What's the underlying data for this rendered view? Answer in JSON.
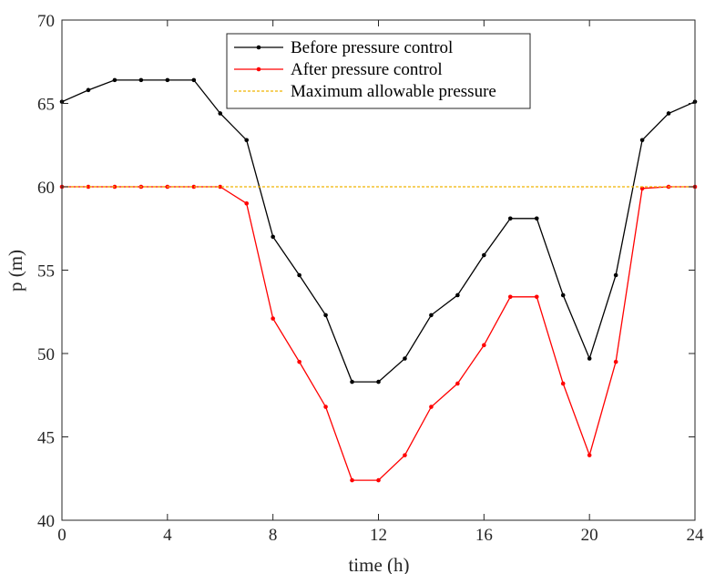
{
  "chart_data": {
    "type": "line",
    "xlabel": "time (h)",
    "ylabel": "p (m)",
    "xlim": [
      0,
      24
    ],
    "ylim": [
      40,
      70
    ],
    "xticks": [
      0,
      4,
      8,
      12,
      16,
      20,
      24
    ],
    "yticks": [
      40,
      45,
      50,
      55,
      60,
      65,
      70
    ],
    "grid": false,
    "legend_position": "top-center",
    "x": [
      0,
      1,
      2,
      3,
      4,
      5,
      6,
      7,
      8,
      9,
      10,
      11,
      12,
      13,
      14,
      15,
      16,
      17,
      18,
      19,
      20,
      21,
      22,
      23,
      24
    ],
    "series": [
      {
        "name": "Before pressure control",
        "color": "#000000",
        "markers": true,
        "dashed": false,
        "values": [
          65.1,
          65.8,
          66.4,
          66.4,
          66.4,
          66.4,
          64.4,
          62.8,
          57.0,
          54.7,
          52.3,
          48.3,
          48.3,
          49.7,
          52.3,
          53.5,
          55.9,
          58.1,
          58.1,
          53.5,
          49.7,
          54.7,
          62.8,
          64.4,
          65.1
        ]
      },
      {
        "name": "After pressure control",
        "color": "#ff0000",
        "markers": true,
        "dashed": false,
        "values": [
          60.0,
          60.0,
          60.0,
          60.0,
          60.0,
          60.0,
          60.0,
          59.0,
          52.1,
          49.5,
          46.8,
          42.4,
          42.4,
          43.9,
          46.8,
          48.2,
          50.5,
          53.4,
          53.4,
          48.2,
          43.9,
          49.5,
          59.9,
          60.0,
          60.0
        ]
      },
      {
        "name": "Maximum allowable pressure",
        "color": "#f0b400",
        "markers": false,
        "dashed": true,
        "values": [
          60,
          60,
          60,
          60,
          60,
          60,
          60,
          60,
          60,
          60,
          60,
          60,
          60,
          60,
          60,
          60,
          60,
          60,
          60,
          60,
          60,
          60,
          60,
          60,
          60
        ]
      }
    ]
  }
}
